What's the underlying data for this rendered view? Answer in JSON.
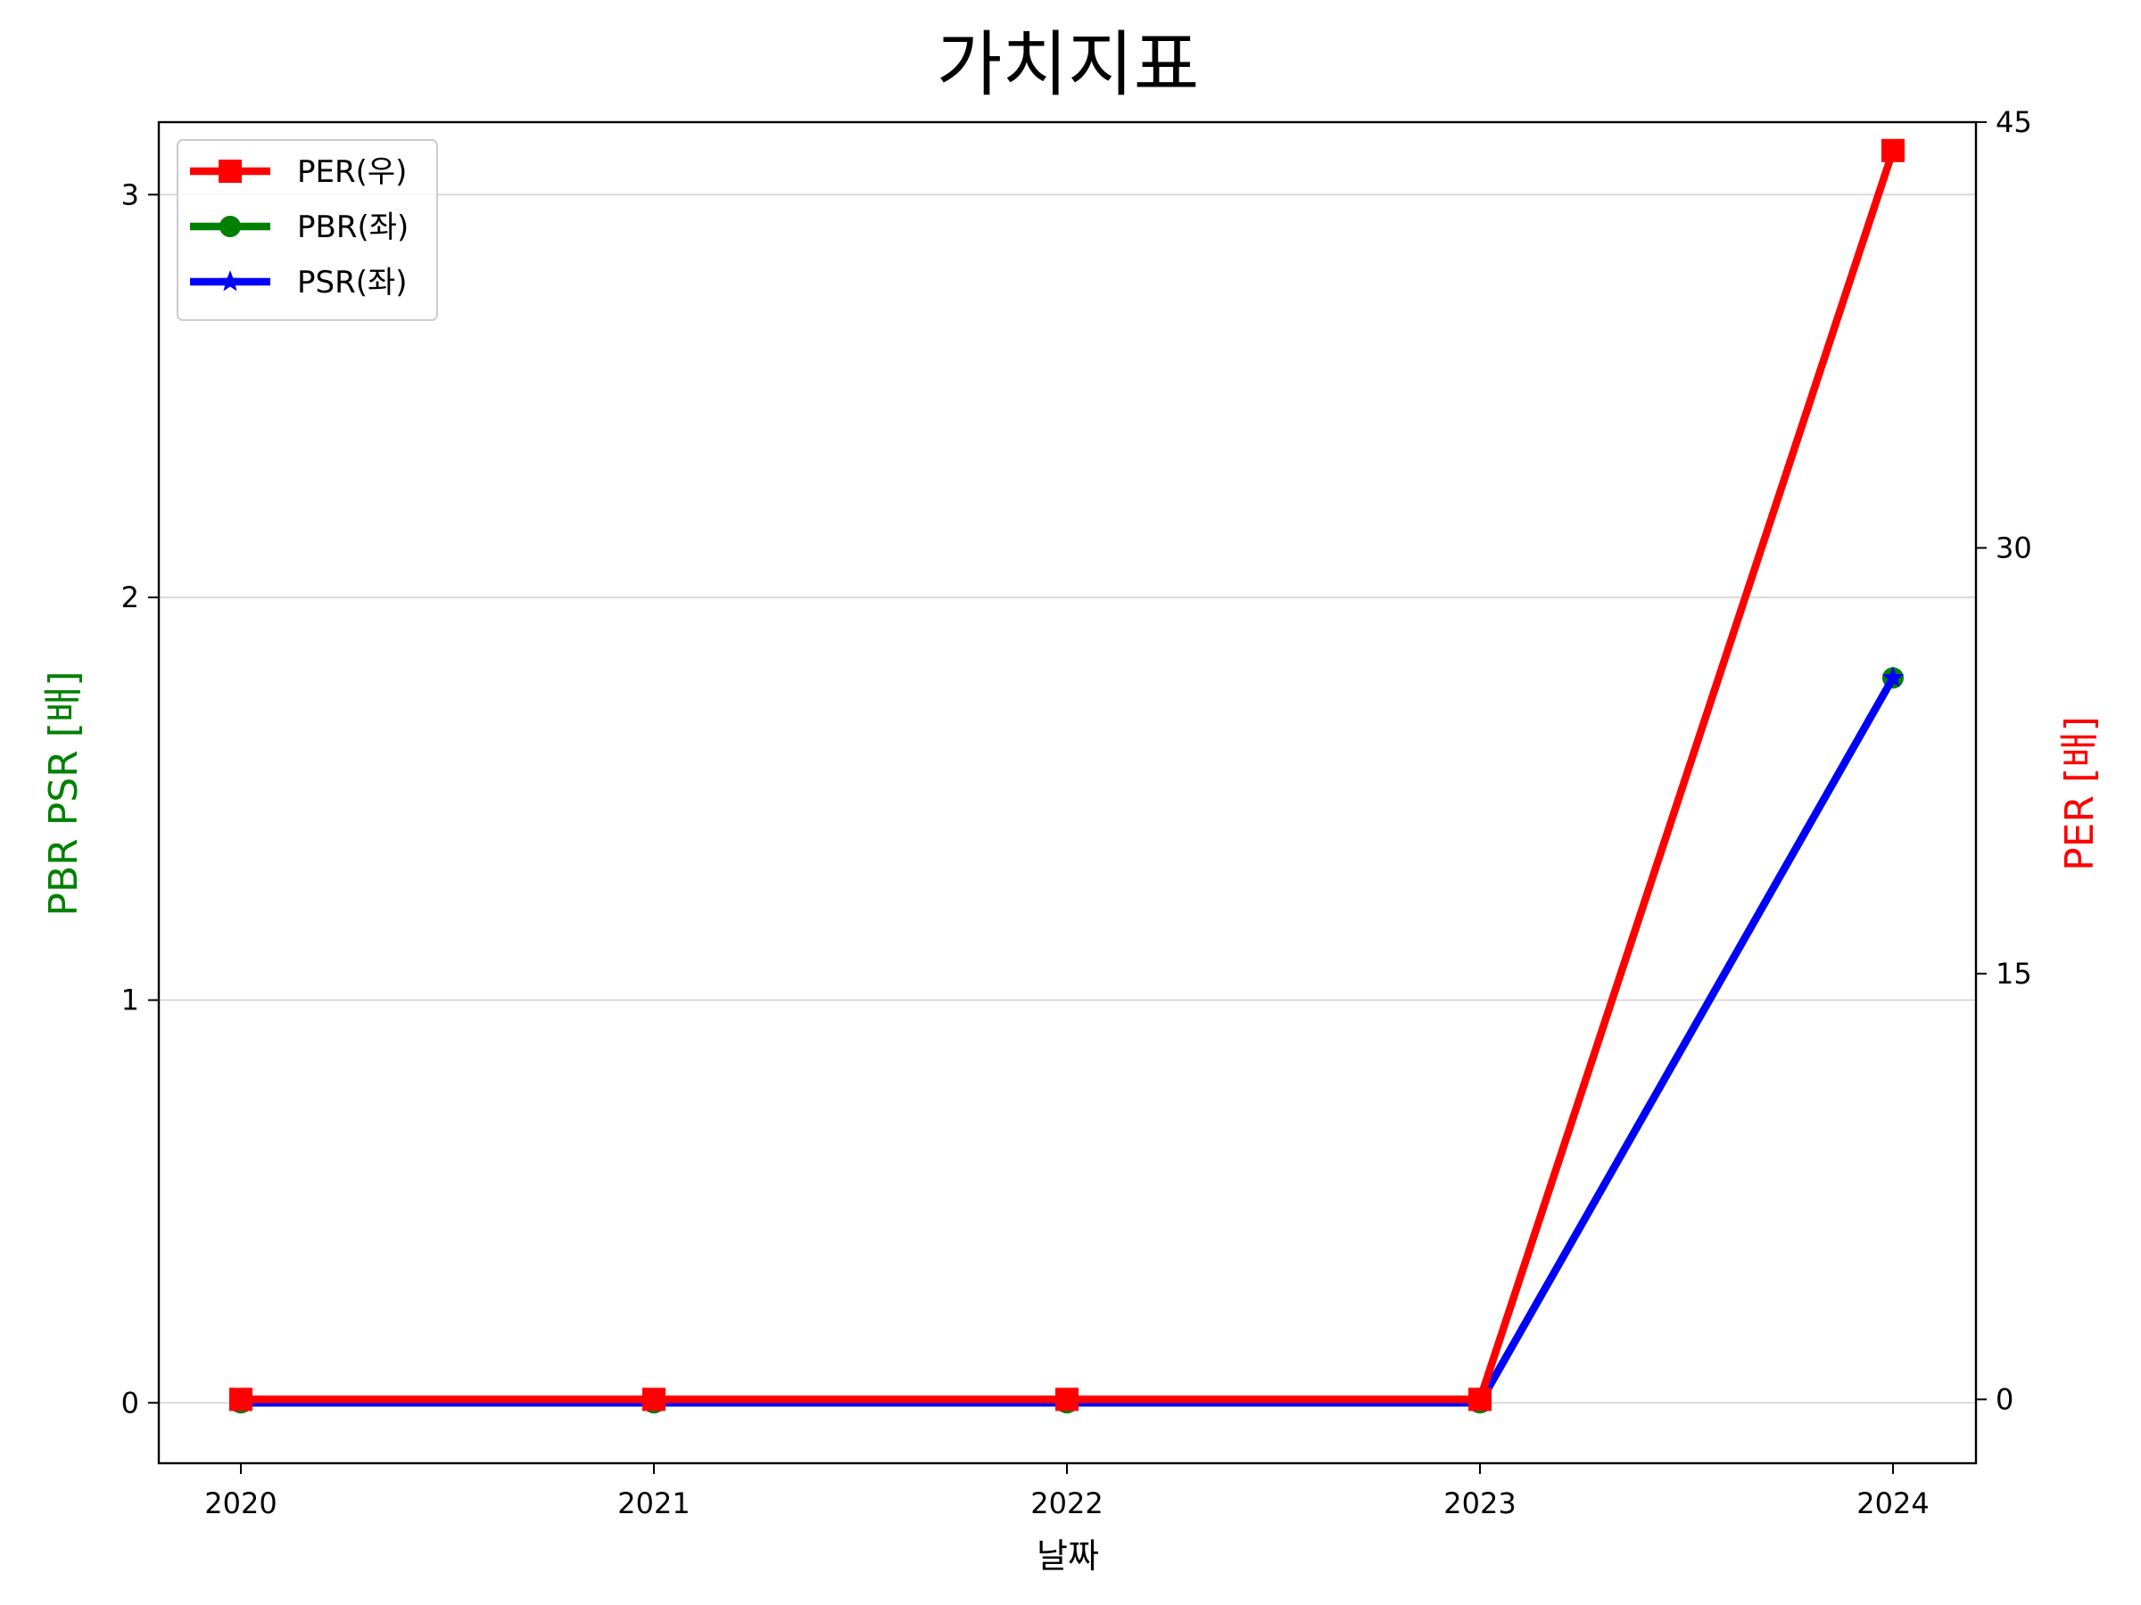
{
  "chart_data": {
    "type": "line",
    "title": "가치지표",
    "xlabel": "날짜",
    "ylabel_left": "PBR PSR [배]",
    "ylabel_right": "PER [배]",
    "categories": [
      "2020",
      "2021",
      "2022",
      "2023",
      "2024"
    ],
    "ylim_left": [
      -0.15,
      3.18
    ],
    "yticks_left": [
      0,
      1,
      2,
      3
    ],
    "ylim_right": [
      -2.25,
      45.0
    ],
    "yticks_right": [
      0,
      15,
      30,
      45
    ],
    "grid": "horizontal (left axis)",
    "legend_placement": "top-left",
    "series": [
      {
        "name": "PER(우)",
        "axis": "right",
        "color": "#ff0000",
        "marker": "square",
        "values": [
          0,
          0,
          0,
          0,
          44.0
        ]
      },
      {
        "name": "PBR(좌)",
        "axis": "left",
        "color": "#008000",
        "marker": "circle",
        "values": [
          0,
          0,
          0,
          0,
          1.8
        ]
      },
      {
        "name": "PSR(좌)",
        "axis": "left",
        "color": "#0000ff",
        "marker": "star",
        "values": [
          0,
          0,
          0,
          0,
          1.8
        ]
      }
    ]
  }
}
